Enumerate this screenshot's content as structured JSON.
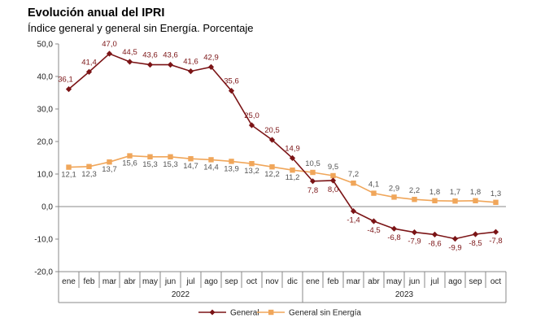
{
  "chart_data": {
    "type": "line",
    "title": "Evolución anual del IPRI",
    "subtitle": "Índice general y general sin Energía. Porcentaje",
    "categories": [
      "ene",
      "feb",
      "mar",
      "abr",
      "may",
      "jun",
      "jul",
      "ago",
      "sep",
      "oct",
      "nov",
      "dic",
      "ene",
      "feb",
      "mar",
      "abr",
      "may",
      "jun",
      "jul",
      "ago",
      "sep",
      "oct"
    ],
    "year_groups": [
      {
        "label": "2022",
        "start": 0,
        "end": 11
      },
      {
        "label": "2023",
        "start": 12,
        "end": 21
      }
    ],
    "ylim": [
      -20,
      50
    ],
    "yticks": [
      "50,0",
      "40,0",
      "30,0",
      "20,0",
      "10,0",
      "0,0",
      "-10,0",
      "-20,0"
    ],
    "ytick_values": [
      50,
      40,
      30,
      20,
      10,
      0,
      -10,
      -20
    ],
    "series": [
      {
        "name": "General",
        "color": "#7b1416",
        "marker": "diamond",
        "values": [
          36.1,
          41.4,
          47.0,
          44.5,
          43.6,
          43.6,
          41.6,
          42.9,
          35.6,
          25.0,
          20.5,
          14.9,
          7.8,
          8.0,
          -1.4,
          -4.5,
          -6.8,
          -7.9,
          -8.6,
          -9.9,
          -8.5,
          -7.8
        ],
        "labels": [
          "36,1",
          "41,4",
          "47,0",
          "44,5",
          "43,6",
          "43,6",
          "41,6",
          "42,9",
          "35,6",
          "25,0",
          "20,5",
          "14,9",
          "7,8",
          "8,0",
          "-1,4",
          "-4,5",
          "-6,8",
          "-7,9",
          "-8,6",
          "-9,9",
          "-8,5",
          "-7,8"
        ]
      },
      {
        "name": "General sin Energía",
        "color": "#f0a65a",
        "marker": "square",
        "values": [
          12.1,
          12.3,
          13.7,
          15.6,
          15.3,
          15.3,
          14.7,
          14.4,
          13.9,
          13.2,
          12.2,
          11.2,
          10.5,
          9.5,
          7.2,
          4.1,
          2.9,
          2.2,
          1.8,
          1.7,
          1.8,
          1.3
        ],
        "labels": [
          "12,1",
          "12,3",
          "13,7",
          "15,6",
          "15,3",
          "15,3",
          "14,7",
          "14,4",
          "13,9",
          "13,2",
          "12,2",
          "11,2",
          "10,5",
          "9,5",
          "7,2",
          "4,1",
          "2,9",
          "2,2",
          "1,8",
          "1,7",
          "1,8",
          "1,3"
        ]
      }
    ],
    "legend_position": "bottom-center",
    "grid": false
  }
}
